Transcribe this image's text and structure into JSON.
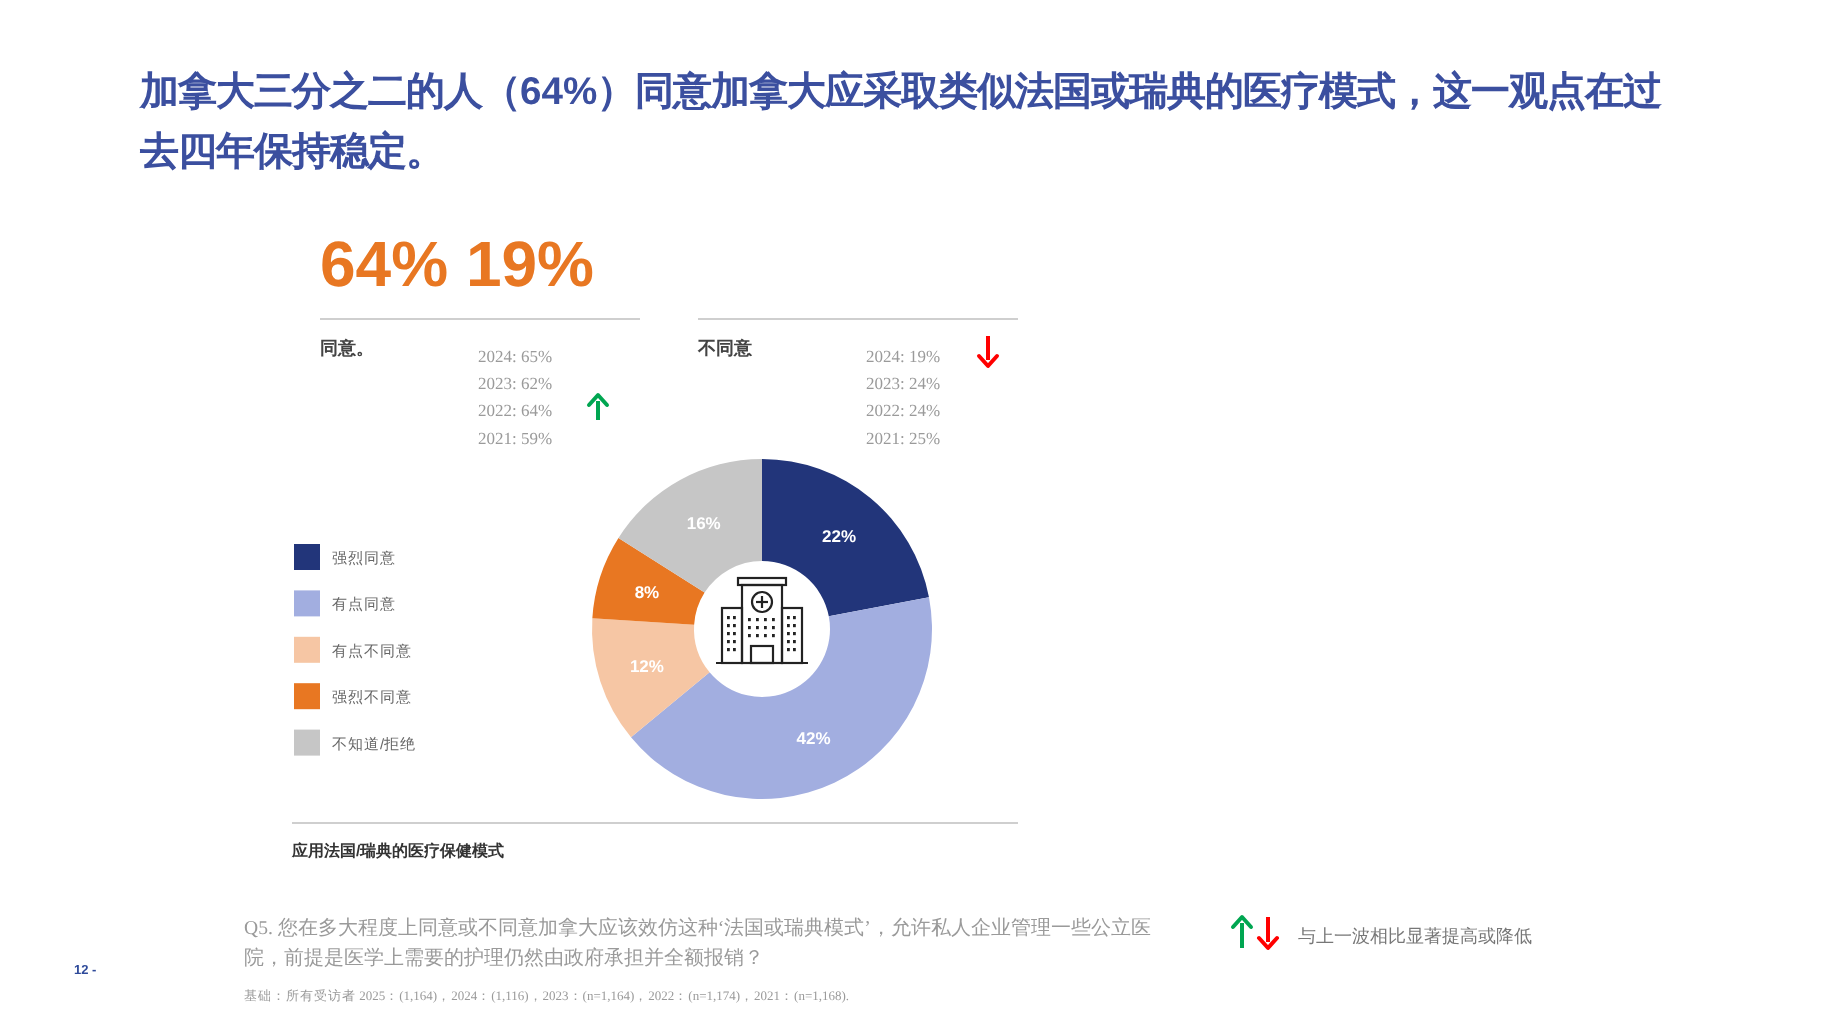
{
  "chart_data": {
    "type": "donut",
    "title": "加拿大三分之二的人（64%）同意加拿大应采取类似法国或瑞典的医疗模式，这一观点在过去四年保持稳定。",
    "categories": [
      "强烈同意",
      "有点同意",
      "有点不同意",
      "强烈不同意",
      "不知道/拒绝"
    ],
    "values": [
      22,
      42,
      12,
      8,
      16
    ],
    "colors": [
      "#22357a",
      "#a2aee0",
      "#f6c6a4",
      "#e87722",
      "#c6c6c6"
    ],
    "value_labels": [
      "22%",
      "42%",
      "12%",
      "8%",
      "16%"
    ],
    "legend": "left",
    "annotations": [
      "64% 19%",
      "同意。",
      "2024: 65%",
      "2023: 62%",
      "2022: 64%",
      "2021: 59%",
      "不同意",
      "2024: 19%",
      "2023: 24%",
      "2022: 24%",
      "2021: 25%",
      "应用法国/瑞典的医疗保健模式",
      "Q5. 您在多大程度上同意或不同意加拿大应该效仿这种‘法国或瑞典模式’，允许私人企业管理一些公立医院，前提是医学上需要的护理仍然由政府承担并全额报销？",
      "基础：所有受访者 2025：(1,164)，2024：(1,116)，2023：(n=1,164)，2022：(n=1,174)，2021：(n=1,168).",
      "与上一波相比显著提高或降低",
      "12 -"
    ]
  }
}
